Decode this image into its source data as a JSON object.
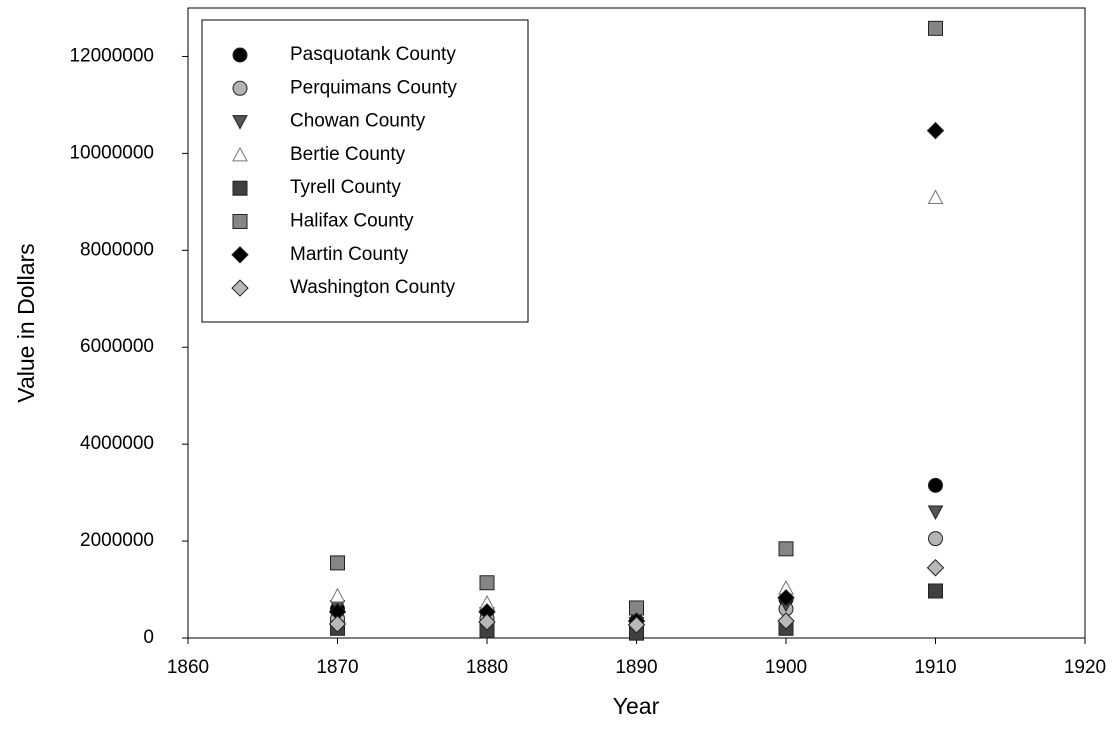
{
  "chart_data": {
    "type": "scatter",
    "x_label": "Year",
    "y_label": "Value in Dollars",
    "x": [
      1870,
      1880,
      1890,
      1900,
      1910
    ],
    "xlim": [
      1860,
      1920
    ],
    "xticks": [
      1860,
      1870,
      1880,
      1890,
      1900,
      1910,
      1920
    ],
    "ylim": [
      0,
      13000000
    ],
    "yticks": [
      0,
      2000000,
      4000000,
      6000000,
      8000000,
      10000000,
      12000000
    ],
    "legend": "upper left",
    "series": [
      {
        "name": "Pasquotank County",
        "color": "#000000",
        "marker": "circle",
        "values": [
          600000,
          550000,
          350000,
          800000,
          3150000
        ]
      },
      {
        "name": "Perquimans County",
        "color": "#b4b4b4",
        "marker": "circle",
        "values": [
          400000,
          400000,
          250000,
          600000,
          2050000
        ]
      },
      {
        "name": "Chowan County",
        "color": "#555555",
        "marker": "triangle-down",
        "values": [
          650000,
          500000,
          300000,
          700000,
          2600000
        ]
      },
      {
        "name": "Bertie County",
        "color": "#ffffff",
        "marker": "triangle-up",
        "values": [
          870000,
          720000,
          400000,
          1030000,
          9090000
        ]
      },
      {
        "name": "Tyrell County",
        "color": "#404040",
        "marker": "square",
        "values": [
          200000,
          150000,
          100000,
          200000,
          970000
        ]
      },
      {
        "name": "Halifax County",
        "color": "#858585",
        "marker": "square",
        "values": [
          1550000,
          1140000,
          620000,
          1840000,
          12580000
        ]
      },
      {
        "name": "Martin County",
        "color": "#000000",
        "marker": "diamond",
        "values": [
          540000,
          540000,
          350000,
          830000,
          10470000
        ]
      },
      {
        "name": "Washington County",
        "color": "#b8b8b8",
        "marker": "diamond",
        "values": [
          290000,
          330000,
          270000,
          350000,
          1450000
        ]
      }
    ]
  }
}
